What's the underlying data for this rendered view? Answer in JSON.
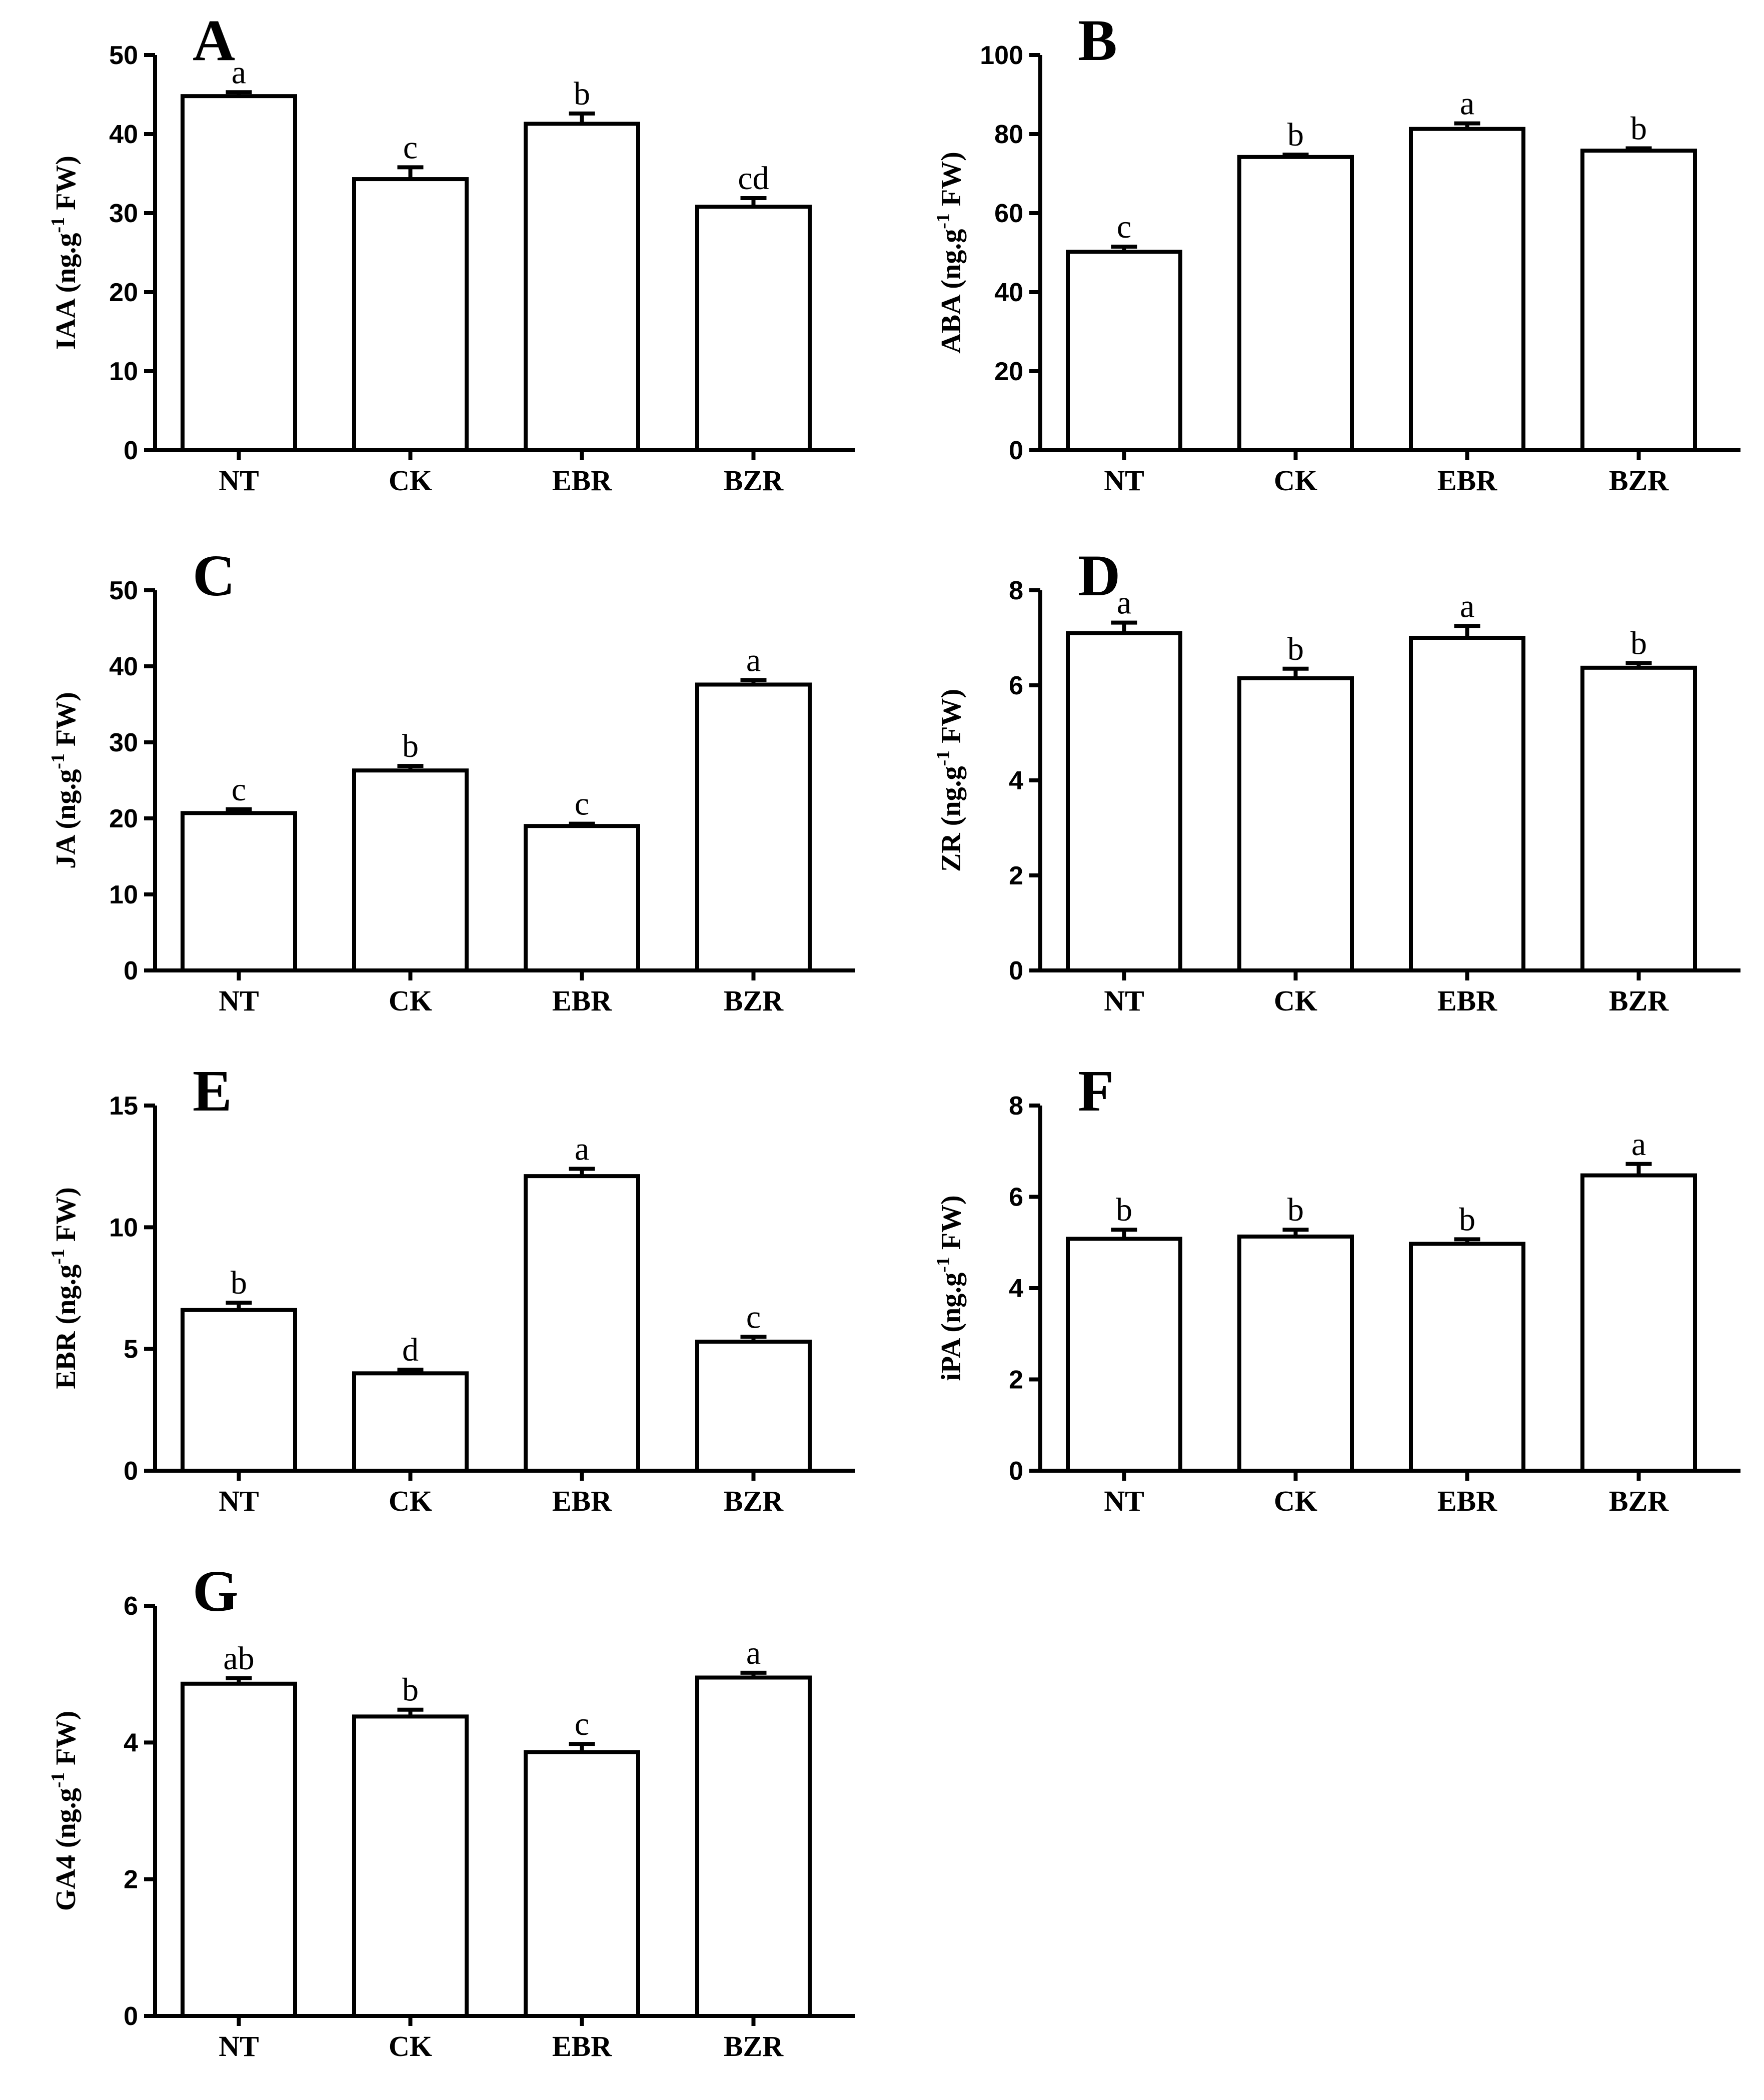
{
  "chart_data": [
    {
      "type": "bar",
      "panel": "A",
      "categories": [
        "NT",
        "CK",
        "EBR",
        "BZR"
      ],
      "values": [
        44.8,
        34.3,
        41.3,
        30.8
      ],
      "errors": [
        0.5,
        1.5,
        1.3,
        1.1
      ],
      "letters": [
        "a",
        "c",
        "b",
        "cd"
      ],
      "ylabel_prefix": "IAA (ng.g",
      "ylabel_sup": "-1",
      "ylabel_suffix": " FW)",
      "ylim": [
        0,
        50
      ],
      "yticks": [
        "0",
        "10",
        "20",
        "30",
        "40",
        "50"
      ]
    },
    {
      "type": "bar",
      "panel": "B",
      "categories": [
        "NT",
        "CK",
        "EBR",
        "BZR"
      ],
      "values": [
        50.2,
        74.2,
        81.3,
        75.8
      ],
      "errors": [
        1.3,
        0.6,
        1.4,
        0.6
      ],
      "letters": [
        "c",
        "b",
        "a",
        "b"
      ],
      "ylabel_prefix": "ABA (ng.g",
      "ylabel_sup": "-1",
      "ylabel_suffix": " FW)",
      "ylim": [
        0,
        100
      ],
      "yticks": [
        "0",
        "20",
        "40",
        "60",
        "80",
        "100"
      ]
    },
    {
      "type": "bar",
      "panel": "C",
      "categories": [
        "NT",
        "CK",
        "EBR",
        "BZR"
      ],
      "values": [
        20.7,
        26.3,
        19.0,
        37.6
      ],
      "errors": [
        0.5,
        0.6,
        0.3,
        0.6
      ],
      "letters": [
        "c",
        "b",
        "c",
        "a"
      ],
      "ylabel_prefix": "JA (ng.g",
      "ylabel_sup": "-1",
      "ylabel_suffix": " FW)",
      "ylim": [
        0,
        50
      ],
      "yticks": [
        "0",
        "10",
        "20",
        "30",
        "40",
        "50"
      ]
    },
    {
      "type": "bar",
      "panel": "D",
      "categories": [
        "NT",
        "CK",
        "EBR",
        "BZR"
      ],
      "values": [
        7.1,
        6.15,
        7.0,
        6.37
      ],
      "errors": [
        0.22,
        0.2,
        0.25,
        0.1
      ],
      "letters": [
        "a",
        "b",
        "a",
        "b"
      ],
      "ylabel_prefix": "ZR (ng.g",
      "ylabel_sup": "-1",
      "ylabel_suffix": " FW)",
      "ylim": [
        0,
        8
      ],
      "yticks": [
        "0",
        "2",
        "4",
        "6",
        "8"
      ]
    },
    {
      "type": "bar",
      "panel": "E",
      "categories": [
        "NT",
        "CK",
        "EBR",
        "BZR"
      ],
      "values": [
        6.6,
        4.0,
        12.1,
        5.3
      ],
      "errors": [
        0.3,
        0.15,
        0.3,
        0.2
      ],
      "letters": [
        "b",
        "d",
        "a",
        "c"
      ],
      "ylabel_prefix": "EBR (ng.g",
      "ylabel_sup": "-1",
      "ylabel_suffix": " FW)",
      "ylim": [
        0,
        15
      ],
      "yticks": [
        "0",
        "5",
        "10",
        "15"
      ]
    },
    {
      "type": "bar",
      "panel": "F",
      "categories": [
        "NT",
        "CK",
        "EBR",
        "BZR"
      ],
      "values": [
        5.08,
        5.13,
        4.97,
        6.47
      ],
      "errors": [
        0.2,
        0.15,
        0.1,
        0.25
      ],
      "letters": [
        "b",
        "b",
        "b",
        "a"
      ],
      "ylabel_prefix": "iPA (ng.g",
      "ylabel_sup": "-1",
      "ylabel_suffix": " FW)",
      "ylim": [
        0,
        8
      ],
      "yticks": [
        "0",
        "2",
        "4",
        "6",
        "8"
      ]
    },
    {
      "type": "bar",
      "panel": "G",
      "categories": [
        "NT",
        "CK",
        "EBR",
        "BZR"
      ],
      "values": [
        4.86,
        4.38,
        3.86,
        4.95
      ],
      "errors": [
        0.08,
        0.1,
        0.12,
        0.07
      ],
      "letters": [
        "ab",
        "b",
        "c",
        "a"
      ],
      "ylabel_prefix": "GA4 (ng.g",
      "ylabel_sup": "-1",
      "ylabel_suffix": " FW)",
      "ylim": [
        0,
        6
      ],
      "yticks": [
        "0",
        "2",
        "4",
        "6"
      ]
    }
  ]
}
